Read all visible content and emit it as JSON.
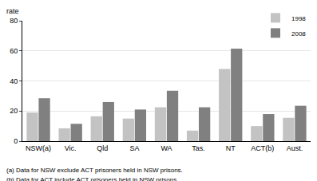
{
  "chart_data": {
    "type": "bar",
    "ylabel": "rate",
    "categories": [
      "NSW(a)",
      "Vic.",
      "Qld",
      "SA",
      "WA",
      "Tas.",
      "NT",
      "ACT(b)",
      "Aust."
    ],
    "series": [
      {
        "name": "1998",
        "color": "#c3c3c3",
        "values": [
          19,
          8.5,
          16.5,
          15,
          22.5,
          7,
          48,
          10,
          15.5
        ]
      },
      {
        "name": "2008",
        "color": "#808080",
        "values": [
          28.5,
          11.5,
          26,
          21,
          33.5,
          22.5,
          61.5,
          18,
          23.5
        ]
      }
    ],
    "ylim": [
      0,
      80
    ],
    "yticks": [
      0,
      20,
      40,
      60,
      80
    ],
    "grid": true,
    "legend": "top right",
    "annotations": [
      "(a) Data for NSW exclude ACT prisoners held in NSW prisons.",
      "(b) Data for ACT include ACT prisoners held in NSW prisons."
    ]
  }
}
